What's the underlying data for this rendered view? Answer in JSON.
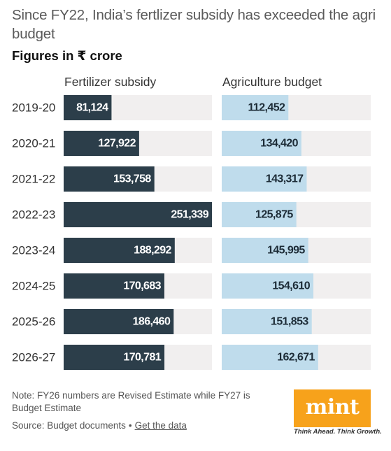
{
  "title": "Since FY22, India’s fertlizer subsidy has exceeded the agri budget",
  "subtitle": "Figures in ₹ crore",
  "note": "Note: FY26 numbers are Revised Estimate while FY27 is Budget Estimate",
  "source_label": "Source: Budget documents",
  "source_separator": "•",
  "data_link": "Get the data",
  "logo_text": "mint",
  "logo_tagline": "Think Ahead. Think Growth.",
  "colors": {
    "fertilizer": "#2c3e4a",
    "agriculture": "#bfdcec",
    "track": "#f1efef",
    "logo": "#f7a21b"
  },
  "chart_data": {
    "type": "bar",
    "orientation": "horizontal",
    "title": "Since FY22, India’s fertlizer subsidy has exceeded the agri budget",
    "unit": "₹ crore",
    "categories": [
      "2019-20",
      "2020-21",
      "2021-22",
      "2022-23",
      "2023-24",
      "2024-25",
      "2025-26",
      "2026-27"
    ],
    "series": [
      {
        "name": "Fertilizer subsidy",
        "values": [
          81124,
          127922,
          153758,
          251339,
          188292,
          170683,
          186460,
          170781
        ],
        "labels": [
          "81,124",
          "127,922",
          "153,758",
          "251,339",
          "188,292",
          "170,683",
          "186,460",
          "170,781"
        ]
      },
      {
        "name": "Agriculture budget",
        "values": [
          112452,
          134420,
          143317,
          125875,
          145995,
          154610,
          151853,
          162671
        ],
        "labels": [
          "112,452",
          "134,420",
          "143,317",
          "125,875",
          "145,995",
          "154,610",
          "151,853",
          "162,671"
        ]
      }
    ],
    "xlim": [
      0,
      251339
    ],
    "grid": false,
    "legend": "column headers"
  }
}
